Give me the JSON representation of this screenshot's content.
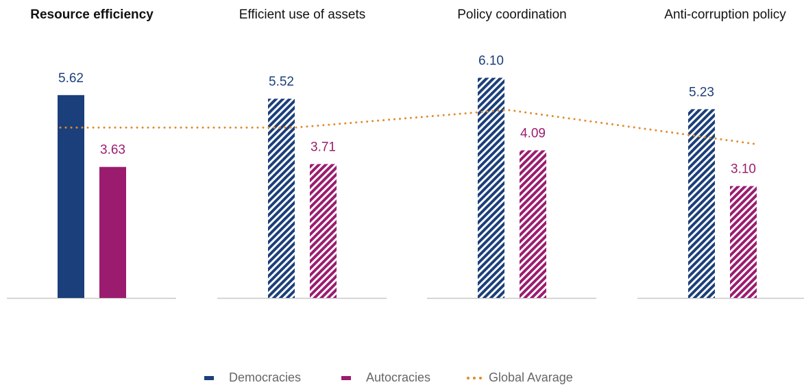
{
  "chart_data": {
    "type": "bar",
    "categories": [
      "Resource efficiency",
      "Efficient use of assets",
      "Policy coordination",
      "Anti-corruption policy"
    ],
    "patterns": [
      "solid",
      "hatch",
      "hatch",
      "hatch"
    ],
    "ylim": [
      0,
      8.25
    ],
    "series": [
      {
        "name": "Democracies",
        "color": "#1b3f7a",
        "values": [
          5.62,
          5.52,
          6.1,
          5.23
        ],
        "value_labels": [
          "5.62",
          "5.52",
          "6.10",
          "5.23"
        ]
      },
      {
        "name": "Autocracies",
        "color": "#9b1c6f",
        "values": [
          3.63,
          3.71,
          4.09,
          3.1
        ],
        "value_labels": [
          "3.63",
          "3.71",
          "4.09",
          "3.10"
        ]
      },
      {
        "name": "Global Avarage",
        "type": "line",
        "style": "dotted",
        "color": "#e08a2a",
        "values": [
          4.72,
          4.72,
          5.21,
          4.27
        ]
      }
    ]
  }
}
